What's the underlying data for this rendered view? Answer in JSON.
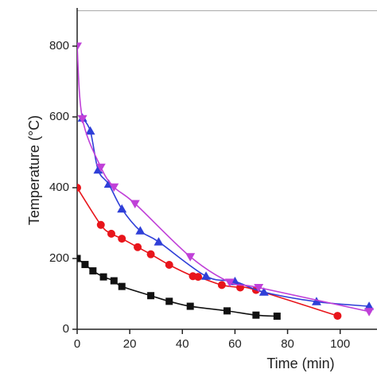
{
  "chart_data": {
    "type": "line",
    "x_label": "Time (min)",
    "y_label": "Temperature (°C)",
    "xlim": [
      0,
      114
    ],
    "ylim": [
      0,
      900
    ],
    "xticks": [
      0,
      20,
      40,
      60,
      80,
      100
    ],
    "yticks": [
      0,
      200,
      400,
      600,
      800
    ],
    "series": [
      {
        "color": "#111111",
        "marker": "square",
        "x": [
          0,
          3,
          6,
          10,
          14,
          17,
          28,
          35,
          43,
          57,
          68,
          76
        ],
        "values": [
          200,
          183,
          165,
          148,
          137,
          121,
          95,
          79,
          65,
          52,
          40,
          37
        ]
      },
      {
        "color": "#e8151b",
        "marker": "circle",
        "x": [
          0,
          9,
          13,
          17,
          23,
          28,
          35,
          44,
          46,
          55,
          62,
          68,
          99
        ],
        "values": [
          400,
          295,
          270,
          256,
          232,
          212,
          182,
          150,
          148,
          125,
          118,
          111,
          38
        ]
      },
      {
        "color": "#2f3fd8",
        "marker": "triangle-up",
        "x": [
          2,
          5,
          8,
          12,
          17,
          24,
          31,
          49,
          60,
          71,
          91,
          111
        ],
        "values": [
          597,
          560,
          450,
          410,
          340,
          278,
          247,
          150,
          135,
          105,
          78,
          65
        ]
      },
      {
        "color": "#c040d8",
        "marker": "triangle-down",
        "x": [
          0,
          2,
          9,
          14,
          22,
          43,
          58,
          69,
          111
        ],
        "values": [
          800,
          595,
          458,
          402,
          355,
          205,
          133,
          118,
          50
        ]
      }
    ]
  }
}
